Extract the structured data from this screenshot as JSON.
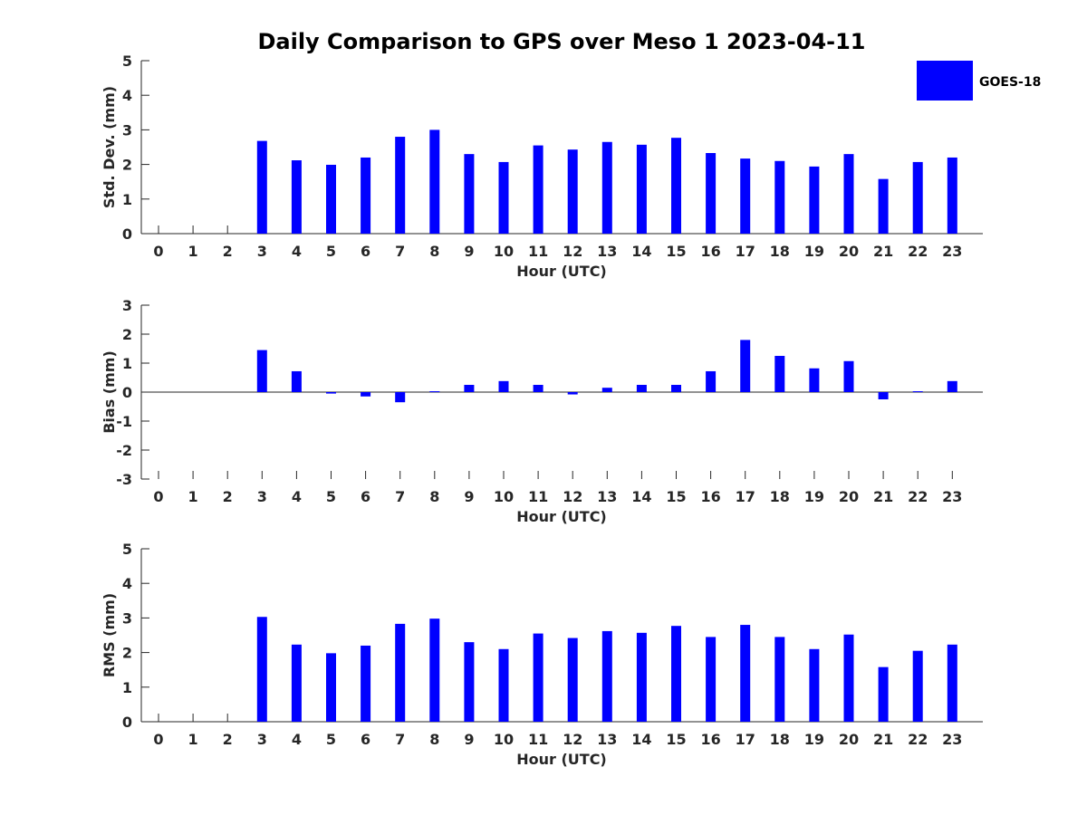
{
  "chart_data": {
    "type": "bar",
    "title": "Daily Comparison to GPS over Meso 1 2023-04-11",
    "legend": {
      "label": "GOES-18",
      "color": "#0000ff",
      "placement": "top-right"
    },
    "bar_color": "#0000ff",
    "categories": [
      "0",
      "1",
      "2",
      "3",
      "4",
      "5",
      "6",
      "7",
      "8",
      "9",
      "10",
      "11",
      "12",
      "13",
      "14",
      "15",
      "16",
      "17",
      "18",
      "19",
      "20",
      "21",
      "22",
      "23"
    ],
    "panels": [
      {
        "id": "std",
        "ylabel": "Std. Dev. (mm)",
        "xlabel": "Hour (UTC)",
        "ylim": [
          0,
          5
        ],
        "yticks": [
          "0",
          "1",
          "2",
          "3",
          "4",
          "5"
        ],
        "values": [
          null,
          null,
          null,
          2.68,
          2.12,
          1.99,
          2.2,
          2.8,
          3.0,
          2.3,
          2.07,
          2.55,
          2.43,
          2.65,
          2.57,
          2.77,
          2.33,
          2.17,
          2.1,
          1.94,
          2.3,
          1.58,
          2.07,
          2.2
        ]
      },
      {
        "id": "bias",
        "ylabel": "Bias (mm)",
        "xlabel": "Hour (UTC)",
        "ylim": [
          -3,
          3
        ],
        "yticks": [
          "-3",
          "-2",
          "-1",
          "0",
          "1",
          "2",
          "3"
        ],
        "values": [
          null,
          null,
          null,
          1.45,
          0.72,
          -0.05,
          -0.15,
          -0.35,
          0.03,
          0.25,
          0.38,
          0.25,
          -0.08,
          0.15,
          0.25,
          0.25,
          0.72,
          1.8,
          1.25,
          0.82,
          1.07,
          -0.25,
          0.03,
          0.38
        ]
      },
      {
        "id": "rms",
        "ylabel": "RMS (mm)",
        "xlabel": "Hour (UTC)",
        "ylim": [
          0,
          5
        ],
        "yticks": [
          "0",
          "1",
          "2",
          "3",
          "4",
          "5"
        ],
        "values": [
          null,
          null,
          null,
          3.03,
          2.23,
          1.98,
          2.2,
          2.83,
          2.98,
          2.3,
          2.1,
          2.55,
          2.42,
          2.62,
          2.57,
          2.77,
          2.45,
          2.8,
          2.45,
          2.1,
          2.52,
          1.58,
          2.05,
          2.23
        ]
      }
    ]
  }
}
